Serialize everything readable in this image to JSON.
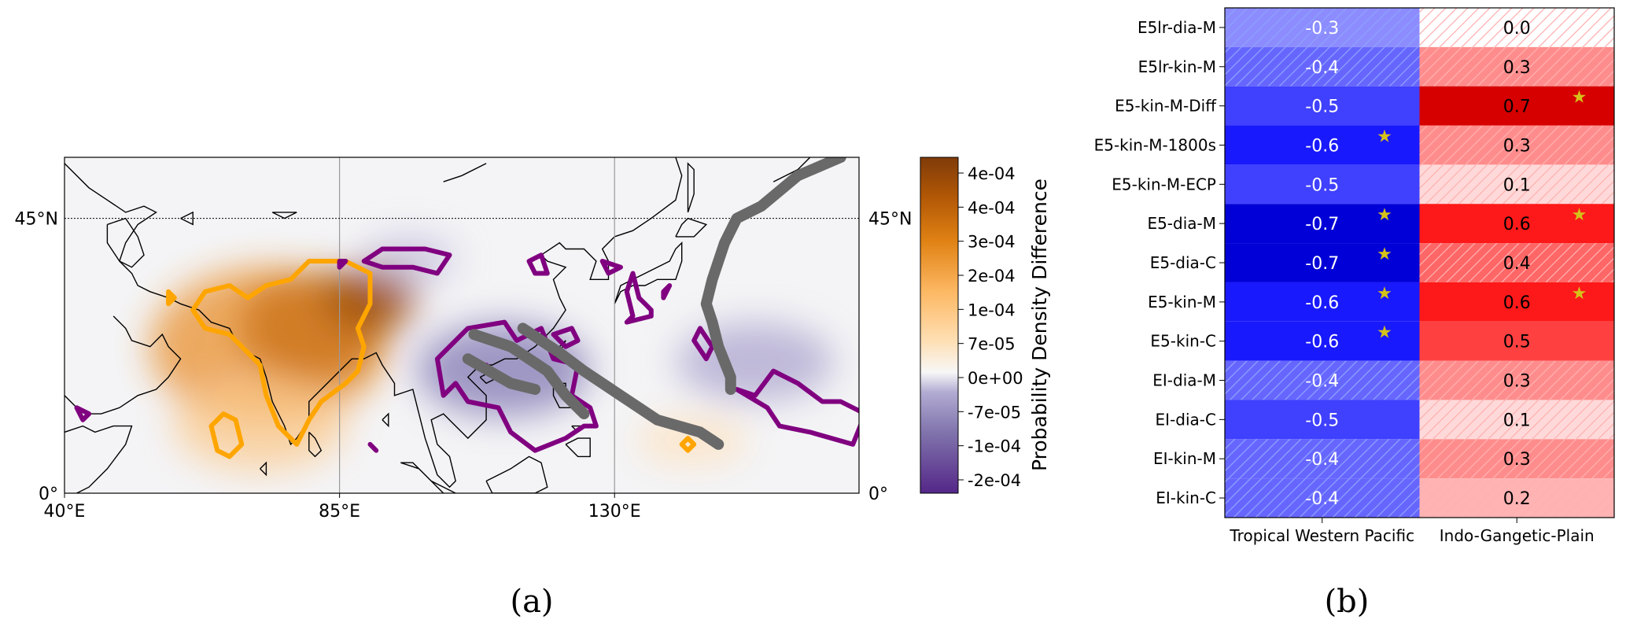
{
  "chart_data": [
    {
      "type": "heatmap",
      "panel_label": "(a)",
      "colorbar_label": "Probability Density Difference",
      "colorbar_ticks": [
        "4e-04",
        "4e-04",
        "3e-04",
        "2e-04",
        "1e-04",
        "7e-05",
        "0e+00",
        "-7e-05",
        "-1e-04",
        "-2e-04"
      ],
      "colorbar_range": [
        -0.00025,
        0.00045
      ],
      "x_ticks": [
        "40°E",
        "85°E",
        "130°E"
      ],
      "y_ticks_left": [
        "0°",
        "45°N"
      ],
      "y_ticks_right": [
        "0°",
        "45°N"
      ],
      "lon_range": [
        40,
        170
      ],
      "lat_range": [
        0,
        55
      ],
      "colors": {
        "positive": "#7f3b08",
        "negative": "#542788",
        "contour_positive": "#ffa500",
        "contour_negative": "#800080",
        "tracks": "#696969",
        "coastline": "#000000"
      },
      "contours": {
        "orange": [
          [
            [
              61,
              30
            ],
            [
              63,
              33
            ],
            [
              67,
              34
            ],
            [
              70,
              32
            ],
            [
              73,
              34
            ],
            [
              77,
              35
            ],
            [
              80,
              38
            ],
            [
              86,
              38
            ],
            [
              90,
              36
            ],
            [
              90,
              31
            ],
            [
              88,
              27
            ],
            [
              89,
              24
            ],
            [
              88,
              20
            ],
            [
              86,
              18
            ],
            [
              82,
              15
            ],
            [
              80,
              12
            ],
            [
              78,
              8
            ],
            [
              75,
              11
            ],
            [
              73,
              16
            ],
            [
              72,
              21
            ],
            [
              70,
              23
            ],
            [
              67,
              26
            ],
            [
              63,
              27
            ],
            [
              61,
              30
            ]
          ],
          [
            [
              64,
              11
            ],
            [
              66,
              13
            ],
            [
              68,
              12
            ],
            [
              69,
              8
            ],
            [
              67,
              6
            ],
            [
              65,
              7
            ],
            [
              64,
              11
            ]
          ],
          [
            [
              57,
              33
            ],
            [
              58,
              32
            ],
            [
              57,
              31
            ],
            [
              57,
              33
            ]
          ],
          [
            [
              141,
              8
            ],
            [
              142,
              7
            ],
            [
              143,
              8
            ],
            [
              142,
              9
            ],
            [
              141,
              8
            ]
          ]
        ],
        "purple": [
          [
            [
              89,
              38
            ],
            [
              92,
              40
            ],
            [
              99,
              40
            ],
            [
              103,
              39
            ],
            [
              101,
              36
            ],
            [
              97,
              37
            ],
            [
              92,
              37
            ],
            [
              89,
              38
            ]
          ],
          [
            [
              114,
              25
            ],
            [
              112,
              28
            ],
            [
              106,
              27
            ],
            [
              101,
              22
            ],
            [
              102,
              16
            ],
            [
              104,
              18
            ],
            [
              106,
              15
            ],
            [
              111,
              14
            ],
            [
              113,
              10
            ],
            [
              117,
              7
            ],
            [
              122,
              9
            ],
            [
              125,
              11
            ],
            [
              127,
              11
            ],
            [
              126,
              14
            ],
            [
              123,
              16
            ],
            [
              124,
              21
            ],
            [
              120,
              22
            ],
            [
              118,
              27
            ],
            [
              114,
              25
            ]
          ],
          [
            [
              109,
              20
            ],
            [
              109,
              21
            ],
            [
              110,
              20
            ],
            [
              109,
              20
            ]
          ],
          [
            [
              120,
              26
            ],
            [
              123,
              27
            ],
            [
              124,
              25
            ],
            [
              122,
              24
            ],
            [
              120,
              26
            ]
          ],
          [
            [
              116,
              38
            ],
            [
              118,
              39
            ],
            [
              119,
              36
            ],
            [
              117,
              36
            ],
            [
              116,
              38
            ]
          ],
          [
            [
              128,
              38
            ],
            [
              129,
              36
            ],
            [
              131,
              37
            ],
            [
              128,
              38
            ]
          ],
          [
            [
              138,
              33
            ],
            [
              138,
              32
            ],
            [
              139,
              34
            ],
            [
              138,
              33
            ]
          ],
          [
            [
              136,
              29
            ],
            [
              136,
              30
            ],
            [
              135,
              31
            ],
            [
              134,
              32
            ],
            [
              133,
              36
            ],
            [
              132,
              33
            ],
            [
              133,
              29
            ],
            [
              132,
              28
            ],
            [
              136,
              29
            ]
          ],
          [
            [
              143,
              25
            ],
            [
              144,
              27
            ],
            [
              146,
              24
            ],
            [
              145,
              22
            ],
            [
              143,
              25
            ]
          ],
          [
            [
              150,
              17
            ],
            [
              153,
              16
            ],
            [
              156,
              20
            ],
            [
              160,
              18
            ],
            [
              164,
              15
            ],
            [
              167,
              15
            ],
            [
              171,
              13
            ],
            [
              169,
              8
            ],
            [
              162,
              10
            ],
            [
              157,
              11
            ],
            [
              155,
              14
            ],
            [
              150,
              17
            ]
          ],
          [
            [
              42,
              14
            ],
            [
              43,
              12
            ],
            [
              44,
              13
            ],
            [
              42,
              14
            ]
          ],
          [
            [
              85,
              38
            ],
            [
              85,
              37
            ],
            [
              86,
              38
            ],
            [
              85,
              38
            ]
          ],
          [
            [
              90,
              8
            ],
            [
              91,
              7
            ],
            [
              90,
              8
            ]
          ]
        ]
      },
      "tracks": [
        [
          [
            106,
            22
          ],
          [
            113,
            18
          ],
          [
            117,
            17
          ]
        ],
        [
          [
            107,
            26
          ],
          [
            113,
            24
          ],
          [
            119,
            20
          ],
          [
            122,
            16
          ],
          [
            125,
            13
          ]
        ],
        [
          [
            115,
            27
          ],
          [
            121,
            23
          ],
          [
            125,
            20
          ],
          [
            131,
            16
          ],
          [
            137,
            12
          ],
          [
            144,
            10
          ],
          [
            147,
            8
          ]
        ],
        [
          [
            167,
            55
          ],
          [
            160,
            52
          ],
          [
            154,
            47
          ],
          [
            150,
            45
          ],
          [
            148,
            41
          ],
          [
            146,
            35
          ],
          [
            145,
            31
          ],
          [
            146,
            28
          ],
          [
            147,
            24
          ],
          [
            149,
            19
          ],
          [
            149,
            17
          ]
        ]
      ]
    },
    {
      "type": "heatmap",
      "panel_label": "(b)",
      "columns": [
        "Tropical Western Pacific",
        "Indo-Gangetic-Plain"
      ],
      "rows": [
        "E5lr-dia-M",
        "E5lr-kin-M",
        "E5-kin-M-Diff",
        "E5-kin-M-1800s",
        "E5-kin-M-ECP",
        "E5-dia-M",
        "E5-dia-C",
        "E5-kin-M",
        "E5-kin-C",
        "EI-dia-M",
        "EI-dia-C",
        "EI-kin-M",
        "EI-kin-C"
      ],
      "values": [
        [
          -0.3,
          0.0
        ],
        [
          -0.4,
          0.3
        ],
        [
          -0.5,
          0.7
        ],
        [
          -0.6,
          0.3
        ],
        [
          -0.5,
          0.1
        ],
        [
          -0.7,
          0.6
        ],
        [
          -0.7,
          0.4
        ],
        [
          -0.6,
          0.6
        ],
        [
          -0.6,
          0.5
        ],
        [
          -0.4,
          0.3
        ],
        [
          -0.5,
          0.1
        ],
        [
          -0.4,
          0.3
        ],
        [
          -0.4,
          0.2
        ]
      ],
      "labels": [
        [
          "-0.3",
          "0.0"
        ],
        [
          "-0.4",
          "0.3"
        ],
        [
          "-0.5",
          "0.7"
        ],
        [
          "-0.6",
          "0.3"
        ],
        [
          "-0.5",
          "0.1"
        ],
        [
          "-0.7",
          "0.6"
        ],
        [
          "-0.7",
          "0.4"
        ],
        [
          "-0.6",
          "0.6"
        ],
        [
          "-0.6",
          "0.5"
        ],
        [
          "-0.4",
          "0.3"
        ],
        [
          "-0.5",
          "0.1"
        ],
        [
          "-0.4",
          "0.3"
        ],
        [
          "-0.4",
          "0.2"
        ]
      ],
      "hatched": [
        [
          true,
          true
        ],
        [
          true,
          true
        ],
        [
          false,
          false
        ],
        [
          false,
          true
        ],
        [
          false,
          true
        ],
        [
          false,
          false
        ],
        [
          false,
          true
        ],
        [
          false,
          false
        ],
        [
          false,
          false
        ],
        [
          true,
          true
        ],
        [
          false,
          true
        ],
        [
          true,
          true
        ],
        [
          true,
          true
        ]
      ],
      "significant": [
        [
          false,
          false
        ],
        [
          false,
          false
        ],
        [
          false,
          true
        ],
        [
          true,
          false
        ],
        [
          false,
          false
        ],
        [
          true,
          true
        ],
        [
          true,
          false
        ],
        [
          true,
          true
        ],
        [
          true,
          false
        ],
        [
          false,
          false
        ],
        [
          false,
          false
        ],
        [
          false,
          false
        ],
        [
          false,
          false
        ]
      ],
      "value_range": [
        -0.7,
        0.7
      ],
      "colors": {
        "negative": "#0000ff",
        "positive": "#ff0000",
        "star": "#d4c21a"
      }
    }
  ]
}
